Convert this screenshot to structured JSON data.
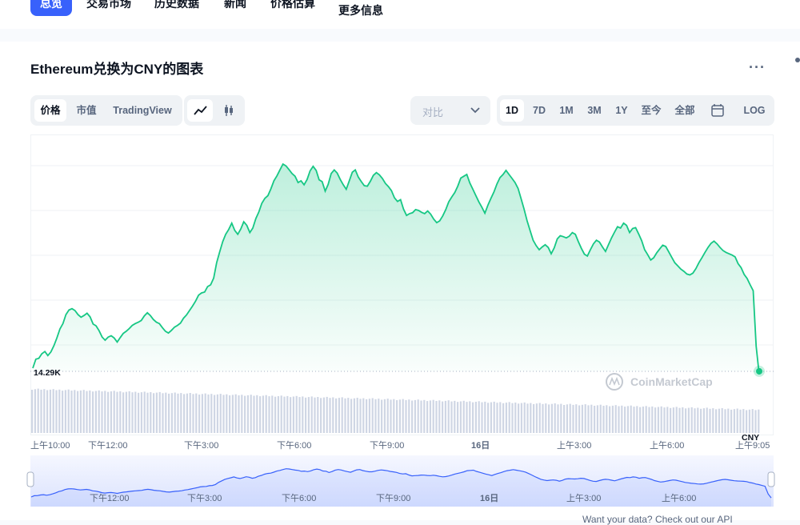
{
  "nav": {
    "tabs": [
      {
        "label": "总览",
        "active": true
      },
      {
        "label": "交易市场"
      },
      {
        "label": "历史数据"
      },
      {
        "label": "新闻"
      },
      {
        "label": "价格估算"
      },
      {
        "label": "更多信息"
      }
    ]
  },
  "header": {
    "title": "Ethereum兑换为CNY的图表",
    "more_label": "···"
  },
  "view_tabs": [
    {
      "label": "价格",
      "active": true
    },
    {
      "label": "市值"
    },
    {
      "label": "TradingView"
    }
  ],
  "chart_type_icons": [
    "line-chart-icon",
    "candlestick-icon"
  ],
  "compare": {
    "placeholder": "对比",
    "icon": "chevron-down-icon"
  },
  "ranges": [
    {
      "label": "1D",
      "active": true
    },
    {
      "label": "7D"
    },
    {
      "label": "1M"
    },
    {
      "label": "3M"
    },
    {
      "label": "1Y"
    },
    {
      "label": "至今"
    },
    {
      "label": "全部"
    },
    {
      "label": "",
      "icon": "calendar-icon"
    },
    {
      "label": "LOG"
    }
  ],
  "watermark": "CoinMarketCap",
  "colors": {
    "accent": "#3861fb",
    "line": "#16c784",
    "navigator_line": "#3861fb",
    "volume": "#cfd6e4"
  },
  "footer_partial": "Want your data? Check out our API",
  "chart_data": {
    "type": "area",
    "y_reference_label": "14.29K",
    "currency_label": "CNY",
    "x_tick_labels": [
      "上午10:00",
      "下午12:00",
      "下午3:00",
      "下午6:00",
      "下午9:00",
      "16日",
      "上午3:00",
      "上午6:00",
      "上午9:05"
    ],
    "navigator_tick_labels": [
      "下午12:00",
      "下午3:00",
      "下午6:00",
      "下午9:00",
      "16日",
      "上午3:00",
      "上午6:00"
    ],
    "series": [
      {
        "values": [
          14.29,
          14.49,
          14.51,
          14.61,
          14.66,
          14.57,
          14.65,
          14.79,
          14.96,
          15.16,
          15.28,
          15.48,
          15.58,
          15.61,
          15.57,
          15.48,
          15.42,
          15.46,
          15.51,
          15.43,
          15.27,
          15.23,
          15.12,
          14.98,
          14.91,
          14.98,
          15.01,
          14.96,
          14.87,
          14.97,
          15.06,
          15.11,
          15.17,
          15.24,
          15.28,
          15.31,
          15.35,
          15.45,
          15.52,
          15.46,
          15.37,
          15.31,
          15.28,
          15.19,
          15.11,
          15.07,
          15.13,
          15.2,
          15.24,
          15.29,
          15.4,
          15.47,
          15.57,
          15.67,
          15.78,
          15.91,
          15.96,
          15.98,
          16.1,
          16.14,
          16.29,
          16.63,
          16.87,
          17.1,
          17.26,
          17.37,
          17.51,
          17.35,
          17.26,
          17.38,
          17.54,
          17.46,
          17.3,
          17.4,
          17.61,
          17.76,
          17.95,
          18.06,
          18.12,
          18.27,
          18.45,
          18.56,
          18.69,
          18.82,
          18.78,
          18.7,
          18.61,
          18.55,
          18.41,
          18.45,
          18.36,
          18.48,
          18.67,
          18.77,
          18.68,
          18.47,
          18.43,
          18.22,
          18.37,
          18.61,
          18.69,
          18.62,
          18.48,
          18.36,
          18.26,
          18.45,
          18.64,
          18.69,
          18.53,
          18.43,
          18.34,
          18.33,
          18.44,
          18.57,
          18.63,
          18.58,
          18.5,
          18.39,
          18.32,
          18.23,
          18.07,
          17.99,
          18.03,
          17.82,
          17.68,
          17.72,
          17.74,
          17.81,
          17.79,
          17.75,
          17.72,
          17.78,
          17.71,
          17.6,
          17.52,
          17.56,
          17.67,
          17.81,
          17.98,
          18.09,
          18.19,
          18.33,
          18.51,
          18.55,
          18.59,
          18.4,
          18.26,
          18.12,
          17.98,
          17.86,
          17.73,
          17.91,
          18.06,
          18.2,
          18.38,
          18.52,
          18.59,
          18.68,
          18.59,
          18.5,
          18.41,
          18.28,
          18.05,
          17.82,
          17.56,
          17.34,
          17.13,
          17.01,
          16.92,
          16.98,
          17.03,
          16.97,
          16.83,
          16.96,
          17.16,
          17.23,
          17.21,
          17.18,
          17.22,
          17.3,
          17.26,
          17.1,
          16.95,
          16.82,
          16.78,
          16.92,
          17.05,
          17.13,
          17.09,
          16.98,
          16.88,
          17.03,
          17.18,
          17.31,
          17.43,
          17.4,
          17.51,
          17.46,
          17.3,
          17.39,
          17.41,
          17.27,
          17.12,
          16.92,
          16.81,
          16.69,
          16.74,
          16.85,
          16.94,
          17.02,
          16.99,
          16.87,
          16.75,
          16.63,
          16.56,
          16.49,
          16.44,
          16.38,
          16.36,
          16.4,
          16.5,
          16.63,
          16.74,
          16.86,
          16.97,
          17.06,
          17.11,
          17.05,
          16.97,
          16.9,
          16.86,
          16.83,
          16.8,
          16.76,
          16.61,
          16.52,
          16.37,
          16.28,
          16.14,
          16.01,
          14.78,
          14.15
        ]
      }
    ],
    "ylim": [
      13.9,
      19.3
    ],
    "grid": true,
    "last_point_marker": true
  }
}
